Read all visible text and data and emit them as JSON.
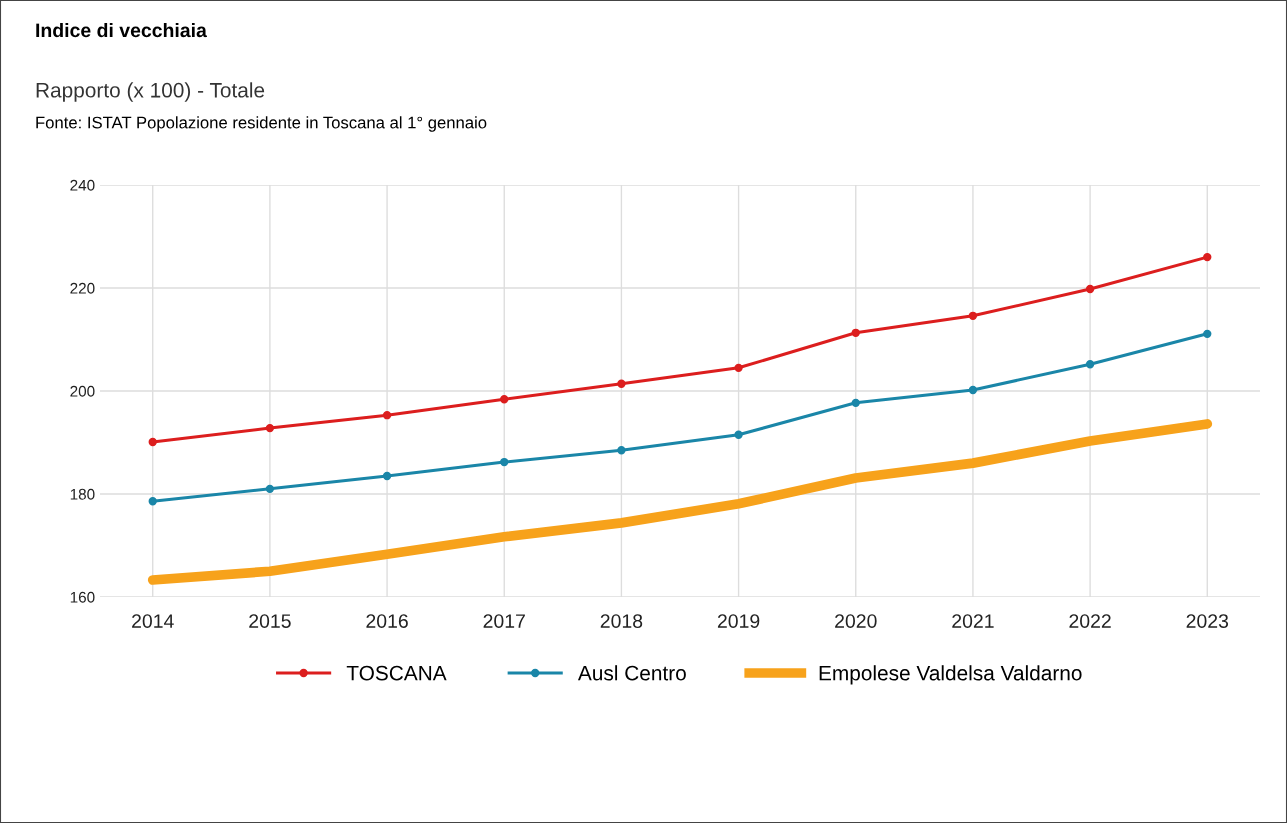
{
  "chart_data": {
    "type": "line",
    "title": "Indice di vecchiaia",
    "subtitle": "Rapporto (x 100) - Totale",
    "annotations": [
      "Fonte: ISTAT Popolazione residente in Toscana al 1° gennaio"
    ],
    "categories": [
      "2014",
      "2015",
      "2016",
      "2017",
      "2018",
      "2019",
      "2020",
      "2021",
      "2022",
      "2023"
    ],
    "series": [
      {
        "name": "TOSCANA",
        "color": "#dc1e1e",
        "marker": "circle",
        "values": [
          190.1,
          192.8,
          195.3,
          198.4,
          201.4,
          204.5,
          211.3,
          214.6,
          219.8,
          226.0
        ]
      },
      {
        "name": "Ausl Centro",
        "color": "#1a86a8",
        "marker": "circle",
        "values": [
          178.6,
          181.0,
          183.5,
          186.2,
          188.5,
          191.5,
          197.7,
          200.2,
          205.2,
          211.1
        ]
      },
      {
        "name": "Empolese Valdelsa Valdarno",
        "color": "#f7a21b",
        "marker": "none",
        "values": [
          163.3,
          165.0,
          168.3,
          171.7,
          174.4,
          178.1,
          183.1,
          186.0,
          190.3,
          193.6
        ]
      }
    ],
    "ylim": [
      160,
      240
    ],
    "yticks": [
      160,
      180,
      200,
      220,
      240
    ],
    "grid": true,
    "legend": "bottom",
    "line_style": "solid"
  }
}
